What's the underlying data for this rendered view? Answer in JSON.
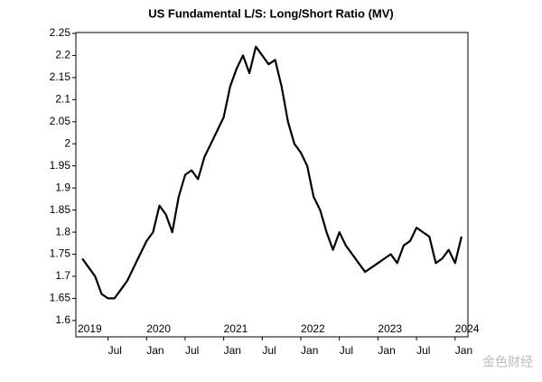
{
  "chart_data": {
    "type": "line",
    "title": "US Fundamental L/S: Long/Short Ratio (MV)",
    "x": [
      "2019-03",
      "2019-04",
      "2019-05",
      "2019-06",
      "2019-07",
      "2019-08",
      "2019-09",
      "2019-10",
      "2019-11",
      "2019-12",
      "2020-01",
      "2020-02",
      "2020-03",
      "2020-04",
      "2020-05",
      "2020-06",
      "2020-07",
      "2020-08",
      "2020-09",
      "2020-10",
      "2020-11",
      "2020-12",
      "2021-01",
      "2021-02",
      "2021-03",
      "2021-04",
      "2021-05",
      "2021-06",
      "2021-07",
      "2021-08",
      "2021-09",
      "2021-10",
      "2021-11",
      "2021-12",
      "2022-01",
      "2022-02",
      "2022-03",
      "2022-04",
      "2022-05",
      "2022-06",
      "2022-07",
      "2022-08",
      "2022-09",
      "2022-10",
      "2022-11",
      "2022-12",
      "2023-01",
      "2023-02",
      "2023-03",
      "2023-04",
      "2023-05",
      "2023-06",
      "2023-07",
      "2023-08",
      "2023-09",
      "2023-10",
      "2023-11",
      "2023-12",
      "2024-01",
      "2024-02"
    ],
    "series": [
      {
        "color": "#000000",
        "values": [
          1.74,
          1.72,
          1.7,
          1.66,
          1.65,
          1.65,
          1.67,
          1.69,
          1.72,
          1.75,
          1.78,
          1.8,
          1.86,
          1.84,
          1.8,
          1.88,
          1.93,
          1.94,
          1.92,
          1.97,
          2.0,
          2.03,
          2.06,
          2.13,
          2.17,
          2.2,
          2.16,
          2.22,
          2.2,
          2.18,
          2.19,
          2.13,
          2.05,
          2.0,
          1.98,
          1.95,
          1.88,
          1.85,
          1.8,
          1.76,
          1.8,
          1.77,
          1.75,
          1.73,
          1.71,
          1.72,
          1.73,
          1.74,
          1.75,
          1.73,
          1.77,
          1.78,
          1.81,
          1.8,
          1.79,
          1.73,
          1.74,
          1.76,
          1.73,
          1.79
        ]
      }
    ],
    "xlim": [
      "2019-02",
      "2024-03"
    ],
    "xticks": [
      {
        "value": "2019-07",
        "label": "Jul"
      },
      {
        "value": "2020-01",
        "label": "Jan"
      },
      {
        "value": "2020-07",
        "label": "Jul"
      },
      {
        "value": "2021-01",
        "label": "Jan"
      },
      {
        "value": "2021-07",
        "label": "Jul"
      },
      {
        "value": "2022-01",
        "label": "Jan"
      },
      {
        "value": "2022-07",
        "label": "Jul"
      },
      {
        "value": "2023-01",
        "label": "Jan"
      },
      {
        "value": "2023-07",
        "label": "Jul"
      },
      {
        "value": "2024-01",
        "label": "Jan"
      }
    ],
    "year_labels": [
      {
        "value": "2019-01",
        "label": "2019"
      },
      {
        "value": "2020-01",
        "label": "2020"
      },
      {
        "value": "2021-01",
        "label": "2021"
      },
      {
        "value": "2022-01",
        "label": "2022"
      },
      {
        "value": "2023-01",
        "label": "2023"
      },
      {
        "value": "2024-01",
        "label": "2024"
      }
    ],
    "ylim": [
      1.563,
      2.252
    ],
    "yticks": [
      1.6,
      1.65,
      1.7,
      1.75,
      1.8,
      1.85,
      1.9,
      1.95,
      2,
      2.05,
      2.1,
      2.15,
      2.2,
      2.25
    ],
    "watermark": "金色财经"
  }
}
